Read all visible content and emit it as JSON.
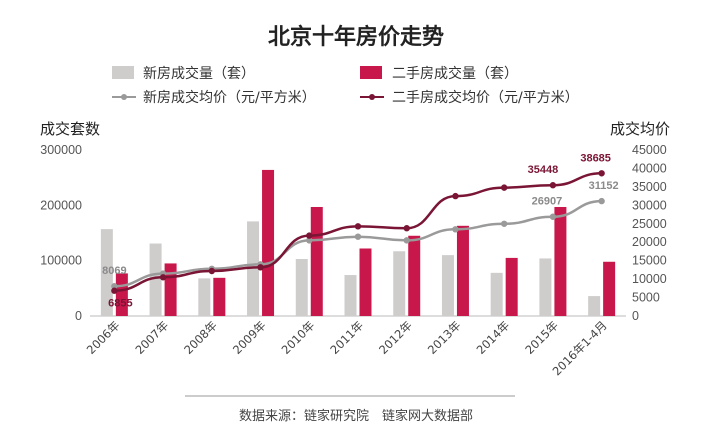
{
  "colors": {
    "new_bar": "#cfcccc",
    "second_bar": "#c8174b",
    "new_line": "#9a9a9a",
    "second_line": "#7a1535"
  },
  "chart_data": {
    "type": "bar",
    "title": "北京十年房价走势",
    "categories": [
      "2006年",
      "2007年",
      "2008年",
      "2009年",
      "2010年",
      "2011年",
      "2012年",
      "2013年",
      "2014年",
      "2015年",
      "2016年1-4月"
    ],
    "series": [
      {
        "name": "新房成交量（套）",
        "type": "bar",
        "axis": "left",
        "values": [
          157000,
          131000,
          68000,
          171000,
          103000,
          74000,
          117000,
          110000,
          78000,
          104000,
          36000
        ]
      },
      {
        "name": "二手房成交量（套）",
        "type": "bar",
        "axis": "left",
        "values": [
          77000,
          95000,
          69000,
          264000,
          197000,
          122000,
          145000,
          163000,
          105000,
          197000,
          98000
        ]
      },
      {
        "name": "新房成交均价（元/平方米）",
        "type": "line",
        "axis": "right",
        "values": [
          8069,
          11500,
          12800,
          14000,
          20500,
          21500,
          20500,
          23500,
          25000,
          26907,
          31152
        ]
      },
      {
        "name": "二手房成交均价（元/平方米）",
        "type": "line",
        "axis": "right",
        "values": [
          6855,
          10500,
          12200,
          13200,
          21800,
          24300,
          23800,
          32500,
          34800,
          35448,
          38685
        ]
      }
    ],
    "ylabel": "成交套数",
    "y2label": "成交均价",
    "ylim": [
      0,
      300000
    ],
    "y2lim": [
      0,
      45000
    ],
    "yticks": [
      "0",
      "100000",
      "200000",
      "300000"
    ],
    "y2ticks": [
      "0",
      "5000",
      "10000",
      "15000",
      "20000",
      "25000",
      "30000",
      "35000",
      "40000",
      "45000"
    ],
    "data_labels": [
      {
        "series": 2,
        "index": 0,
        "text": "8069"
      },
      {
        "series": 3,
        "index": 0,
        "text": "6855"
      },
      {
        "series": 2,
        "index": 9,
        "text": "26907"
      },
      {
        "series": 2,
        "index": 10,
        "text": "31152"
      },
      {
        "series": 3,
        "index": 9,
        "text": "35448"
      },
      {
        "series": 3,
        "index": 10,
        "text": "38685"
      }
    ],
    "legend_position": "top",
    "grid": false
  },
  "source": "数据来源：链家研究院　链家网大数据部"
}
